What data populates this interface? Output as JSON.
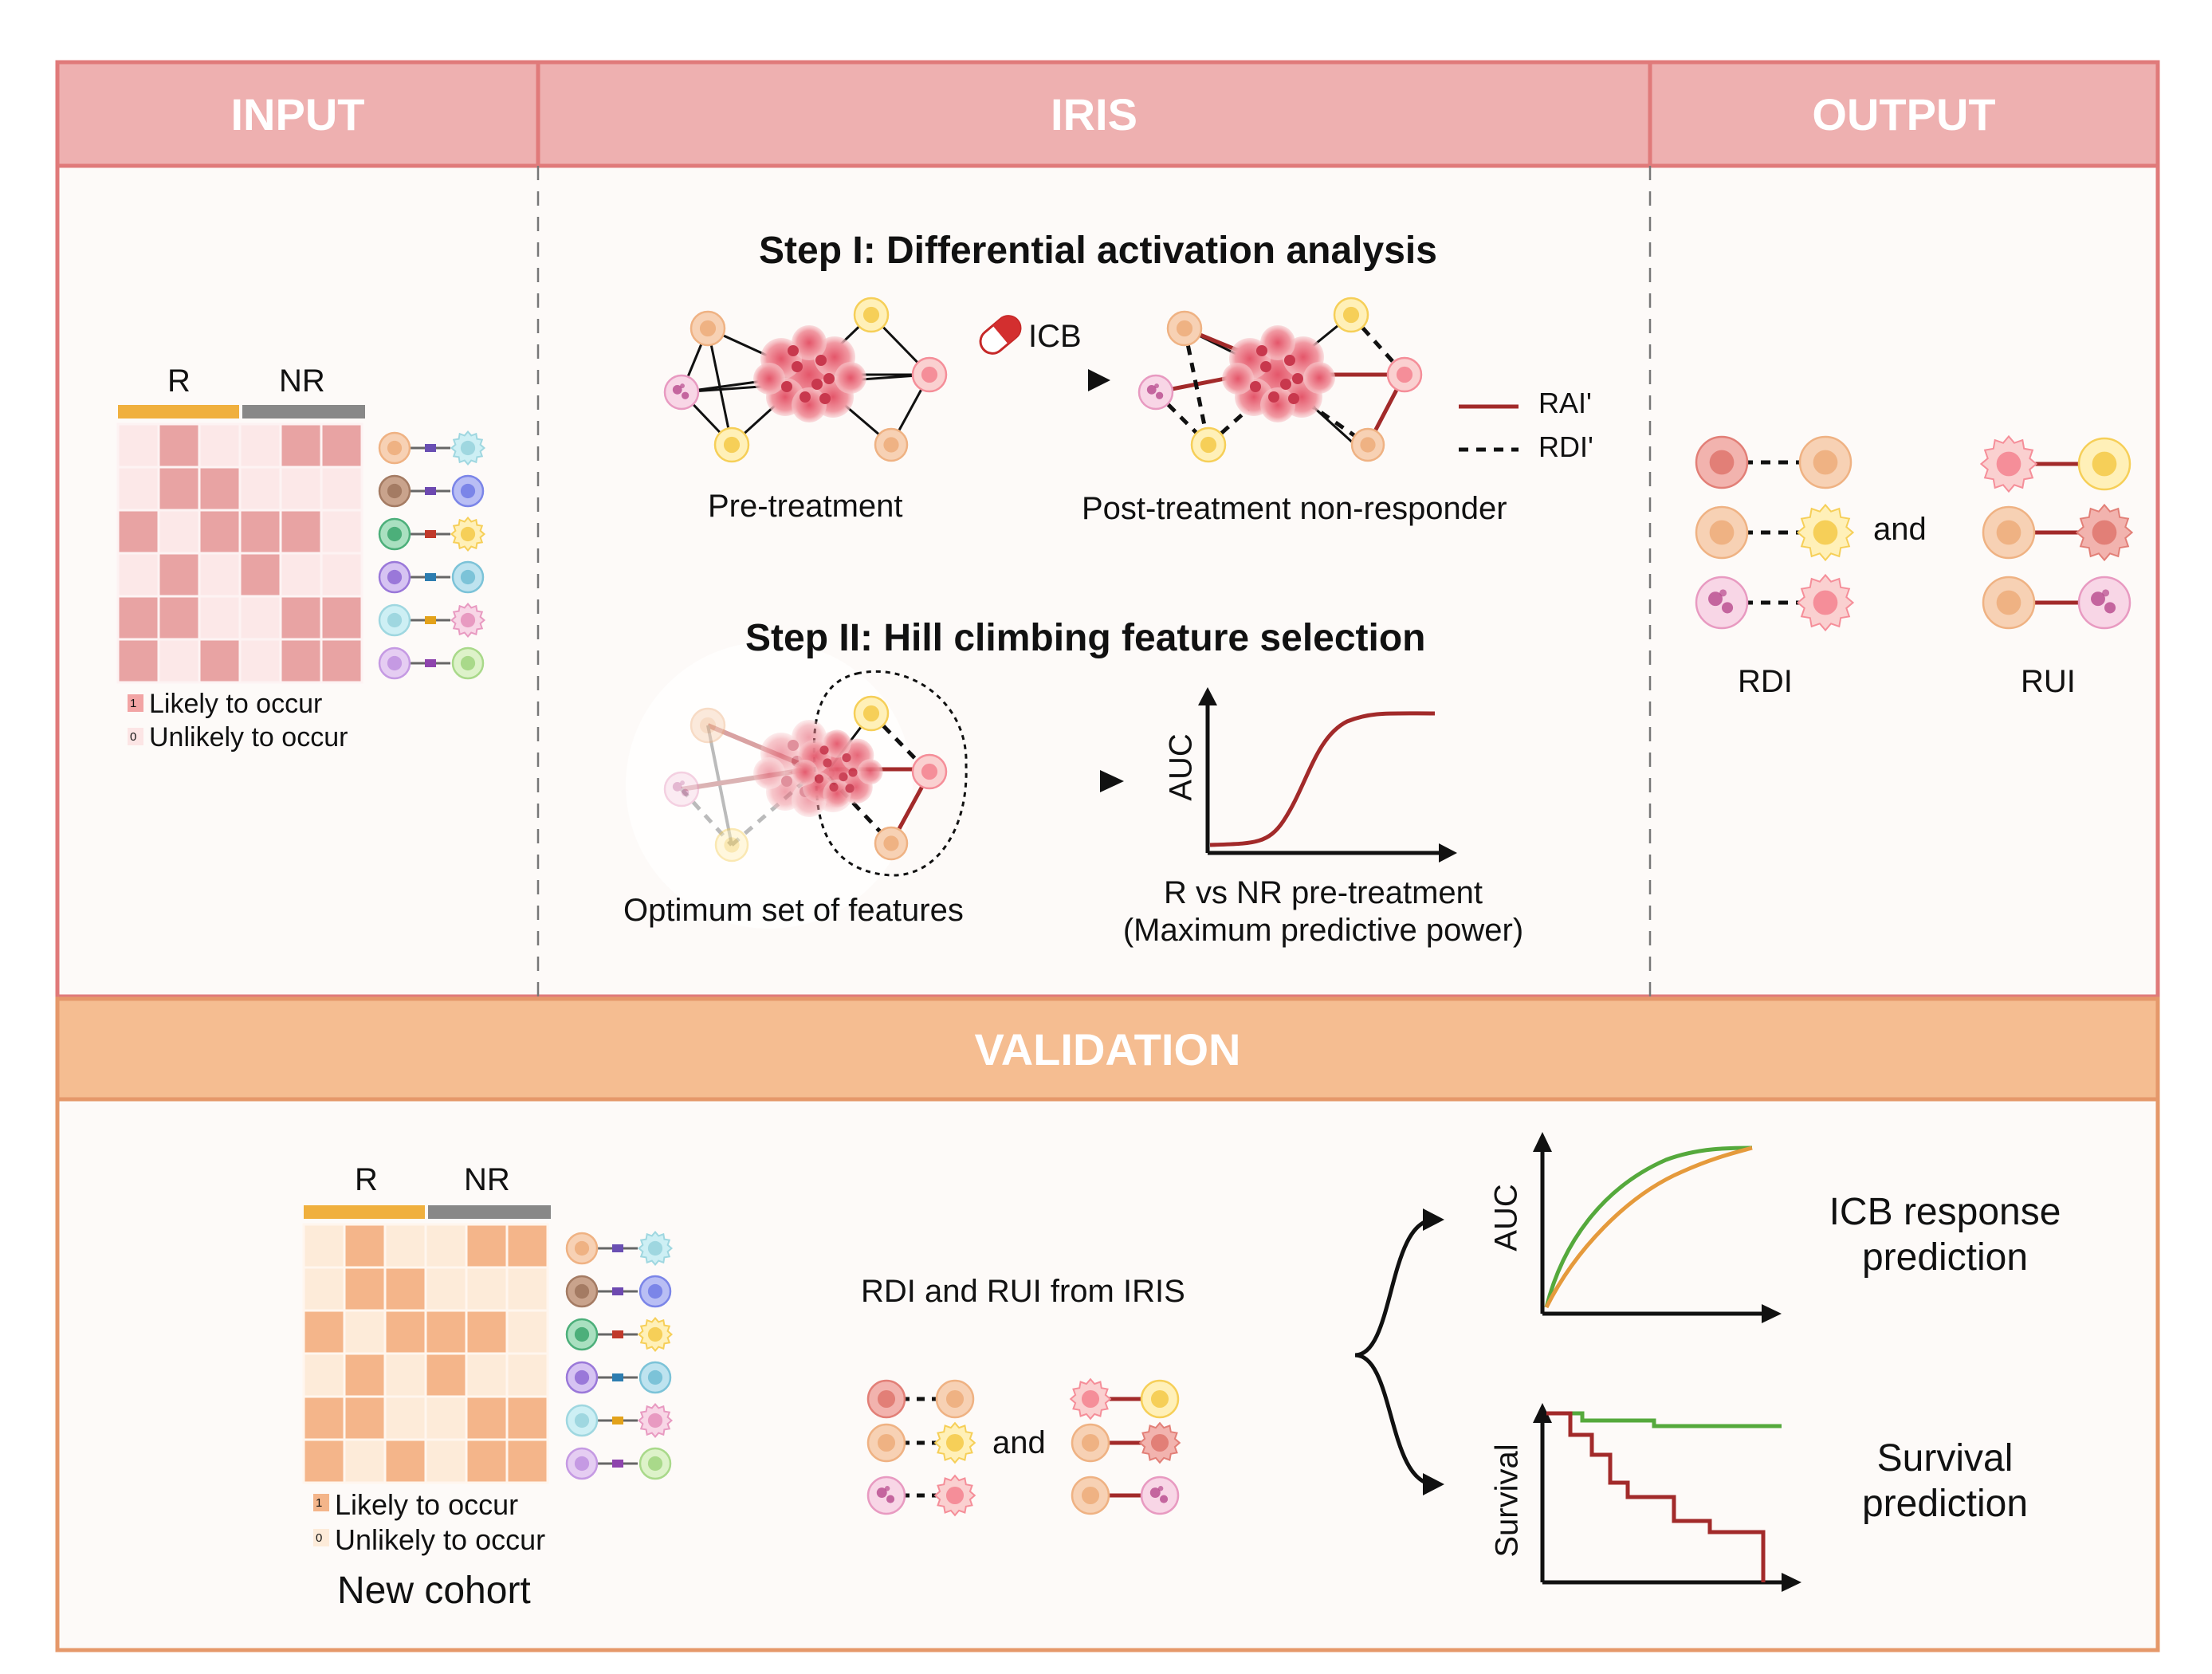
{
  "colors": {
    "pink_header": "#EEB0B0",
    "pink_border": "#E07A7A",
    "orange_header": "#F5BD91",
    "orange_border": "#E5986A",
    "panel_bg": "#FDFAF8",
    "responder_bar": "#F0B03E",
    "nonresponder_bar": "#888888",
    "rai_line": "#A22A2A",
    "green_curve": "#55A93C",
    "orange_curve": "#E59A3C"
  },
  "headers": {
    "input": "INPUT",
    "iris": "IRIS",
    "output": "OUTPUT",
    "validation": "VALIDATION"
  },
  "input": {
    "r_label": "R",
    "nr_label": "NR",
    "legend_1_key": "1",
    "legend_1": "Likely to occur",
    "legend_0_key": "0",
    "legend_0": "Unlikely to occur"
  },
  "step1": {
    "title": "Step I: Differential activation analysis",
    "drug": "ICB",
    "pre": "Pre-treatment",
    "post": "Post-treatment non-responder",
    "legend_rai": "RAI'",
    "legend_rdi": "RDI'"
  },
  "step2": {
    "title": "Step II: Hill climbing feature selection",
    "optimum": "Optimum set of features",
    "axis_y": "AUC",
    "caption_1": "R vs NR pre-treatment",
    "caption_2": "(Maximum predictive power)"
  },
  "output": {
    "and": "and",
    "rdi": "RDI",
    "rui": "RUI"
  },
  "validation": {
    "r_label": "R",
    "nr_label": "NR",
    "legend_1_key": "1",
    "legend_1": "Likely to occur",
    "legend_0_key": "0",
    "legend_0": "Unlikely to occur",
    "cohort": "New cohort",
    "from_iris": "RDI and RUI from IRIS",
    "and": "and",
    "auc_axis": "AUC",
    "survival_axis": "Survival",
    "icb_1": "ICB response",
    "icb_2": "prediction",
    "surv_1": "Survival",
    "surv_2": "prediction"
  }
}
